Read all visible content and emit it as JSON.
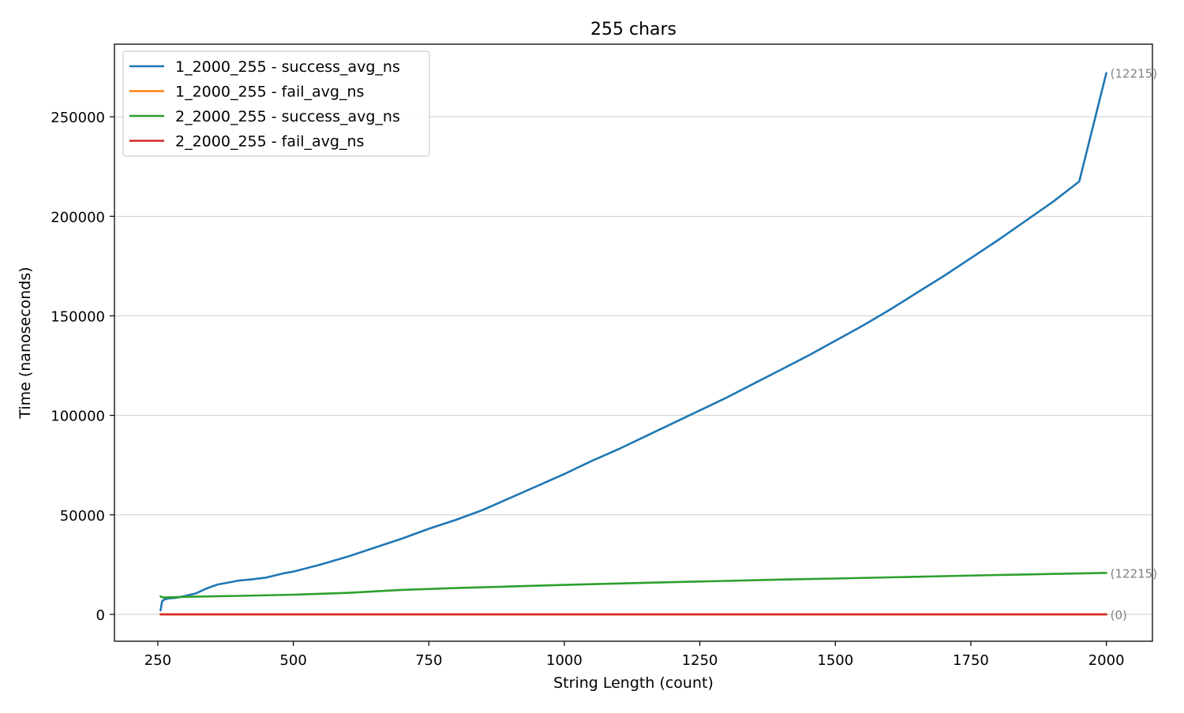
{
  "chart_data": {
    "type": "line",
    "title": "255 chars",
    "xlabel": "String Length (count)",
    "ylabel": "Time (nanoseconds)",
    "xlim": [
      170,
      2085
    ],
    "ylim": [
      -13500,
      286500
    ],
    "xticks": [
      250,
      500,
      750,
      1000,
      1250,
      1500,
      1750,
      2000
    ],
    "yticks": [
      0,
      50000,
      100000,
      150000,
      200000,
      250000
    ],
    "grid": "horizontal",
    "legend_position": "upper-left",
    "series": [
      {
        "name": "1_2000_255 - success_avg_ns",
        "color": "#1f77b4",
        "x": [
          255,
          258,
          262,
          270,
          280,
          290,
          300,
          320,
          340,
          360,
          380,
          400,
          420,
          450,
          480,
          500,
          550,
          600,
          650,
          700,
          750,
          800,
          850,
          900,
          950,
          1000,
          1050,
          1100,
          1150,
          1200,
          1250,
          1300,
          1350,
          1400,
          1450,
          1500,
          1550,
          1600,
          1650,
          1700,
          1750,
          1800,
          1850,
          1900,
          1950,
          2000
        ],
        "values": [
          2000,
          6500,
          7500,
          8000,
          8200,
          8600,
          9200,
          10500,
          13000,
          15000,
          16000,
          17000,
          17500,
          18500,
          20500,
          21500,
          25000,
          29000,
          33500,
          38000,
          43000,
          47500,
          52500,
          58500,
          64500,
          70500,
          77000,
          83000,
          89500,
          96000,
          102500,
          109000,
          116000,
          123000,
          130000,
          137500,
          145000,
          153000,
          161500,
          170000,
          179000,
          188000,
          197500,
          207000,
          217500,
          272000
        ]
      },
      {
        "name": "1_2000_255 - fail_avg_ns",
        "color": "#ff7f0e",
        "x": [
          255,
          2000
        ],
        "values": [
          0,
          0
        ]
      },
      {
        "name": "2_2000_255 - success_avg_ns",
        "color": "#2ca02c",
        "x": [
          255,
          260,
          280,
          300,
          400,
          500,
          600,
          700,
          800,
          900,
          1000,
          1100,
          1200,
          1300,
          1400,
          1500,
          1600,
          1700,
          1800,
          1900,
          2000
        ],
        "values": [
          9000,
          8500,
          8600,
          8800,
          9300,
          9900,
          10800,
          12300,
          13200,
          14000,
          14800,
          15500,
          16200,
          16800,
          17500,
          18000,
          18600,
          19200,
          19800,
          20300,
          20800
        ]
      },
      {
        "name": "2_2000_255 - fail_avg_ns",
        "color": "#d62728",
        "x": [
          255,
          2000
        ],
        "values": [
          0,
          0
        ]
      }
    ],
    "end_annotations": [
      {
        "text": "(12215)",
        "y": 272000
      },
      {
        "text": "(12215)",
        "y": 20800
      },
      {
        "text": "(0)",
        "y": 0
      }
    ]
  }
}
